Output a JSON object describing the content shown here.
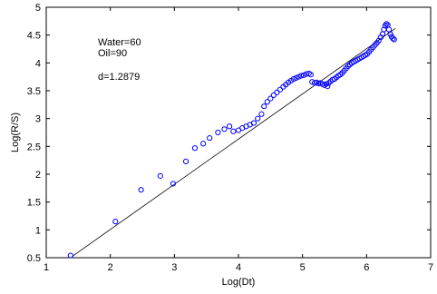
{
  "chart_data": {
    "type": "scatter",
    "xlabel": "Log(Dt)",
    "ylabel": "Log(R/S)",
    "xlim": [
      1,
      7
    ],
    "ylim": [
      0.5,
      5
    ],
    "xticks": [
      "1",
      "2",
      "3",
      "4",
      "5",
      "6",
      "7"
    ],
    "yticks": [
      "0.5",
      "1",
      "1.5",
      "2",
      "2.5",
      "3",
      "3.5",
      "4",
      "4.5",
      "5"
    ],
    "grid": false,
    "marker": "circle",
    "marker_color": "#0000ff",
    "line_color": "#000000",
    "annotations": [
      "Water=60",
      "Oil=90",
      "d=1.2879"
    ],
    "fit_line": {
      "x": [
        1.4,
        6.45
      ],
      "y": [
        0.52,
        4.62
      ]
    },
    "points": [
      [
        1.38,
        0.54
      ],
      [
        2.08,
        1.15
      ],
      [
        2.48,
        1.72
      ],
      [
        2.78,
        1.97
      ],
      [
        2.98,
        1.83
      ],
      [
        3.18,
        2.23
      ],
      [
        3.32,
        2.47
      ],
      [
        3.45,
        2.55
      ],
      [
        3.55,
        2.65
      ],
      [
        3.68,
        2.75
      ],
      [
        3.78,
        2.81
      ],
      [
        3.86,
        2.86
      ],
      [
        3.92,
        2.77
      ],
      [
        4.0,
        2.79
      ],
      [
        4.06,
        2.83
      ],
      [
        4.12,
        2.86
      ],
      [
        4.18,
        2.89
      ],
      [
        4.24,
        2.92
      ],
      [
        4.3,
        3.0
      ],
      [
        4.36,
        3.08
      ],
      [
        4.4,
        3.22
      ],
      [
        4.45,
        3.3
      ],
      [
        4.5,
        3.36
      ],
      [
        4.55,
        3.42
      ],
      [
        4.6,
        3.47
      ],
      [
        4.65,
        3.52
      ],
      [
        4.7,
        3.57
      ],
      [
        4.74,
        3.61
      ],
      [
        4.78,
        3.65
      ],
      [
        4.82,
        3.68
      ],
      [
        4.86,
        3.71
      ],
      [
        4.9,
        3.73
      ],
      [
        4.94,
        3.75
      ],
      [
        4.98,
        3.77
      ],
      [
        5.02,
        3.78
      ],
      [
        5.06,
        3.8
      ],
      [
        5.1,
        3.81
      ],
      [
        5.13,
        3.79
      ],
      [
        5.15,
        3.66
      ],
      [
        5.19,
        3.64
      ],
      [
        5.22,
        3.65
      ],
      [
        5.25,
        3.63
      ],
      [
        5.28,
        3.64
      ],
      [
        5.31,
        3.62
      ],
      [
        5.34,
        3.6
      ],
      [
        5.37,
        3.62
      ],
      [
        5.39,
        3.58
      ],
      [
        5.41,
        3.64
      ],
      [
        5.44,
        3.67
      ],
      [
        5.47,
        3.7
      ],
      [
        5.5,
        3.71
      ],
      [
        5.53,
        3.74
      ],
      [
        5.56,
        3.77
      ],
      [
        5.59,
        3.79
      ],
      [
        5.62,
        3.82
      ],
      [
        5.65,
        3.86
      ],
      [
        5.68,
        3.9
      ],
      [
        5.71,
        3.94
      ],
      [
        5.74,
        3.97
      ],
      [
        5.77,
        4.0
      ],
      [
        5.8,
        4.02
      ],
      [
        5.83,
        4.04
      ],
      [
        5.86,
        4.06
      ],
      [
        5.89,
        4.08
      ],
      [
        5.92,
        4.1
      ],
      [
        5.95,
        4.12
      ],
      [
        5.98,
        4.14
      ],
      [
        6.01,
        4.16
      ],
      [
        6.04,
        4.2
      ],
      [
        6.07,
        4.24
      ],
      [
        6.1,
        4.28
      ],
      [
        6.13,
        4.32
      ],
      [
        6.16,
        4.36
      ],
      [
        6.19,
        4.4
      ],
      [
        6.22,
        4.46
      ],
      [
        6.25,
        4.52
      ],
      [
        6.27,
        4.6
      ],
      [
        6.29,
        4.67
      ],
      [
        6.31,
        4.7
      ],
      [
        6.33,
        4.68
      ],
      [
        6.35,
        4.6
      ],
      [
        6.37,
        4.52
      ],
      [
        6.39,
        4.47
      ],
      [
        6.41,
        4.44
      ],
      [
        6.43,
        4.42
      ]
    ]
  }
}
